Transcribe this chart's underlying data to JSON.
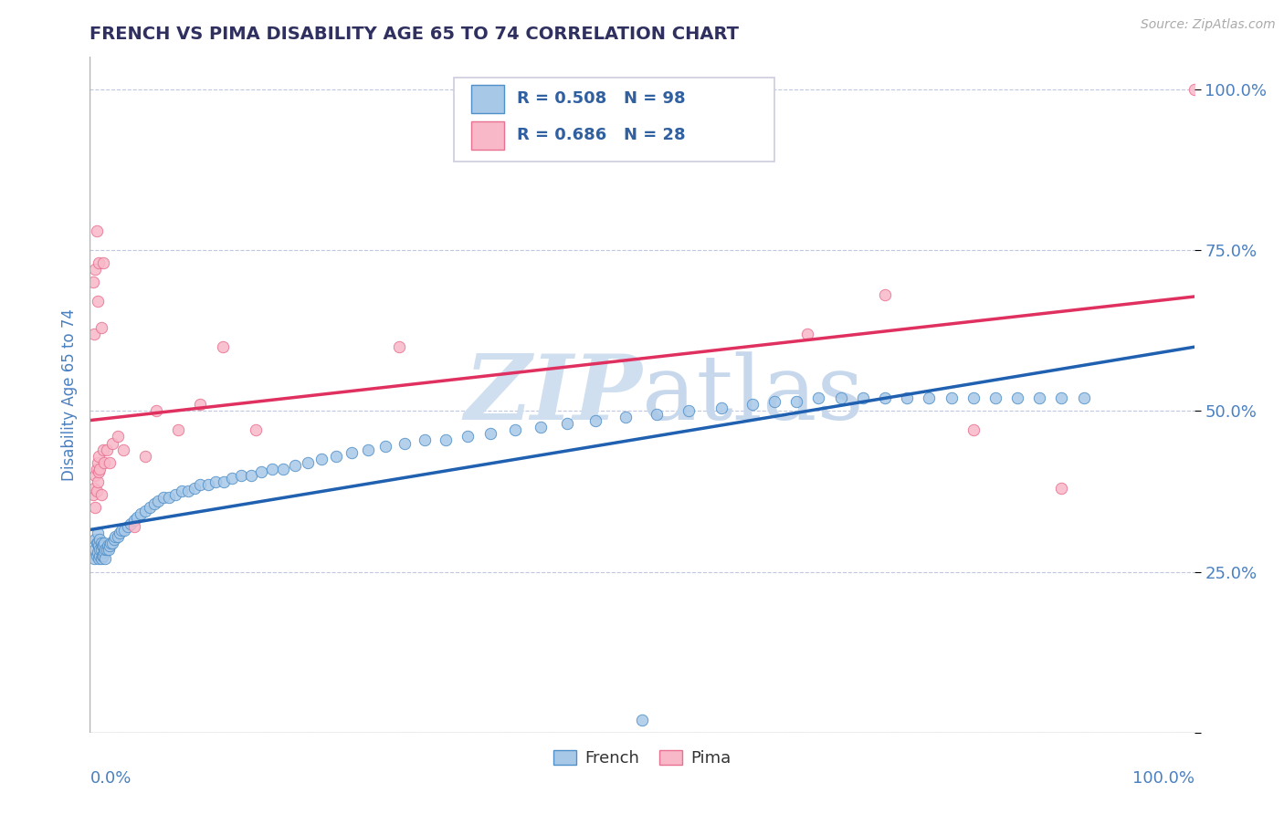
{
  "title": "FRENCH VS PIMA DISABILITY AGE 65 TO 74 CORRELATION CHART",
  "source": "Source: ZipAtlas.com",
  "ylabel": "Disability Age 65 to 74",
  "xlim": [
    0.0,
    1.0
  ],
  "ylim": [
    0.0,
    1.05
  ],
  "ytick_vals": [
    0.0,
    0.25,
    0.5,
    0.75,
    1.0
  ],
  "ytick_labels": [
    "",
    "25.0%",
    "50.0%",
    "75.0%",
    "100.0%"
  ],
  "xtick_left": "0.0%",
  "xtick_right": "100.0%",
  "french_R": 0.508,
  "french_N": 98,
  "pima_R": 0.686,
  "pima_N": 28,
  "french_scatter_color": "#a8c8e8",
  "french_edge_color": "#5090c8",
  "pima_scatter_color": "#f8b8c8",
  "pima_edge_color": "#e87090",
  "french_line_color": "#2060b0",
  "pima_line_color": "#e03060",
  "watermark_zip_color": "#d0dff0",
  "watermark_atlas_color": "#c8d8ec",
  "title_color": "#303060",
  "tick_label_color": "#4a80c0",
  "ylabel_color": "#4a80c0",
  "bg_color": "#ffffff",
  "grid_color": "#c0c8e0",
  "legend_r_color": "#3060a0",
  "source_color": "#aaaaaa",
  "french_x": [
    0.004,
    0.005,
    0.005,
    0.006,
    0.006,
    0.007,
    0.007,
    0.007,
    0.008,
    0.008,
    0.009,
    0.009,
    0.009,
    0.01,
    0.01,
    0.01,
    0.011,
    0.011,
    0.012,
    0.012,
    0.013,
    0.013,
    0.014,
    0.014,
    0.015,
    0.016,
    0.017,
    0.018,
    0.019,
    0.02,
    0.022,
    0.023,
    0.025,
    0.027,
    0.029,
    0.031,
    0.034,
    0.037,
    0.04,
    0.043,
    0.046,
    0.05,
    0.054,
    0.058,
    0.062,
    0.067,
    0.072,
    0.077,
    0.083,
    0.089,
    0.095,
    0.1,
    0.107,
    0.114,
    0.121,
    0.129,
    0.137,
    0.146,
    0.155,
    0.165,
    0.175,
    0.186,
    0.197,
    0.21,
    0.223,
    0.237,
    0.252,
    0.268,
    0.285,
    0.303,
    0.322,
    0.342,
    0.363,
    0.385,
    0.408,
    0.432,
    0.458,
    0.485,
    0.513,
    0.542,
    0.572,
    0.6,
    0.62,
    0.64,
    0.66,
    0.68,
    0.7,
    0.72,
    0.74,
    0.76,
    0.78,
    0.8,
    0.82,
    0.84,
    0.86,
    0.88,
    0.9,
    0.5
  ],
  "french_y": [
    0.27,
    0.285,
    0.3,
    0.275,
    0.295,
    0.28,
    0.295,
    0.31,
    0.27,
    0.29,
    0.275,
    0.285,
    0.3,
    0.27,
    0.285,
    0.295,
    0.275,
    0.29,
    0.275,
    0.29,
    0.28,
    0.295,
    0.27,
    0.285,
    0.285,
    0.29,
    0.285,
    0.29,
    0.295,
    0.295,
    0.3,
    0.305,
    0.305,
    0.31,
    0.315,
    0.315,
    0.32,
    0.325,
    0.33,
    0.335,
    0.34,
    0.345,
    0.35,
    0.355,
    0.36,
    0.365,
    0.365,
    0.37,
    0.375,
    0.375,
    0.38,
    0.385,
    0.385,
    0.39,
    0.39,
    0.395,
    0.4,
    0.4,
    0.405,
    0.41,
    0.41,
    0.415,
    0.42,
    0.425,
    0.43,
    0.435,
    0.44,
    0.445,
    0.45,
    0.455,
    0.455,
    0.46,
    0.465,
    0.47,
    0.475,
    0.48,
    0.485,
    0.49,
    0.495,
    0.5,
    0.505,
    0.51,
    0.515,
    0.515,
    0.52,
    0.52,
    0.52,
    0.52,
    0.52,
    0.52,
    0.52,
    0.52,
    0.52,
    0.52,
    0.52,
    0.52,
    0.52,
    0.02
  ],
  "pima_x": [
    0.003,
    0.004,
    0.005,
    0.005,
    0.006,
    0.006,
    0.007,
    0.007,
    0.008,
    0.008,
    0.009,
    0.01,
    0.012,
    0.013,
    0.015,
    0.018,
    0.02,
    0.025,
    0.03,
    0.04,
    0.05,
    0.06,
    0.08,
    0.1,
    0.12,
    0.15,
    0.28,
    1.0
  ],
  "pima_y": [
    0.37,
    0.38,
    0.35,
    0.4,
    0.375,
    0.41,
    0.42,
    0.39,
    0.43,
    0.405,
    0.41,
    0.37,
    0.44,
    0.42,
    0.44,
    0.42,
    0.45,
    0.46,
    0.44,
    0.32,
    0.43,
    0.5,
    0.47,
    0.51,
    0.6,
    0.47,
    0.6,
    1.0
  ],
  "pima_high_x": [
    0.003,
    0.004,
    0.005,
    0.006,
    0.007,
    0.008,
    0.01,
    0.012,
    0.65,
    0.72,
    0.8,
    0.88
  ],
  "pima_high_y": [
    0.7,
    0.62,
    0.72,
    0.78,
    0.67,
    0.73,
    0.63,
    0.73,
    0.62,
    0.68,
    0.47,
    0.38
  ],
  "french_line_x0": 0.0,
  "french_line_x1": 1.0,
  "pima_line_x0": 0.0,
  "pima_line_x1": 1.0
}
